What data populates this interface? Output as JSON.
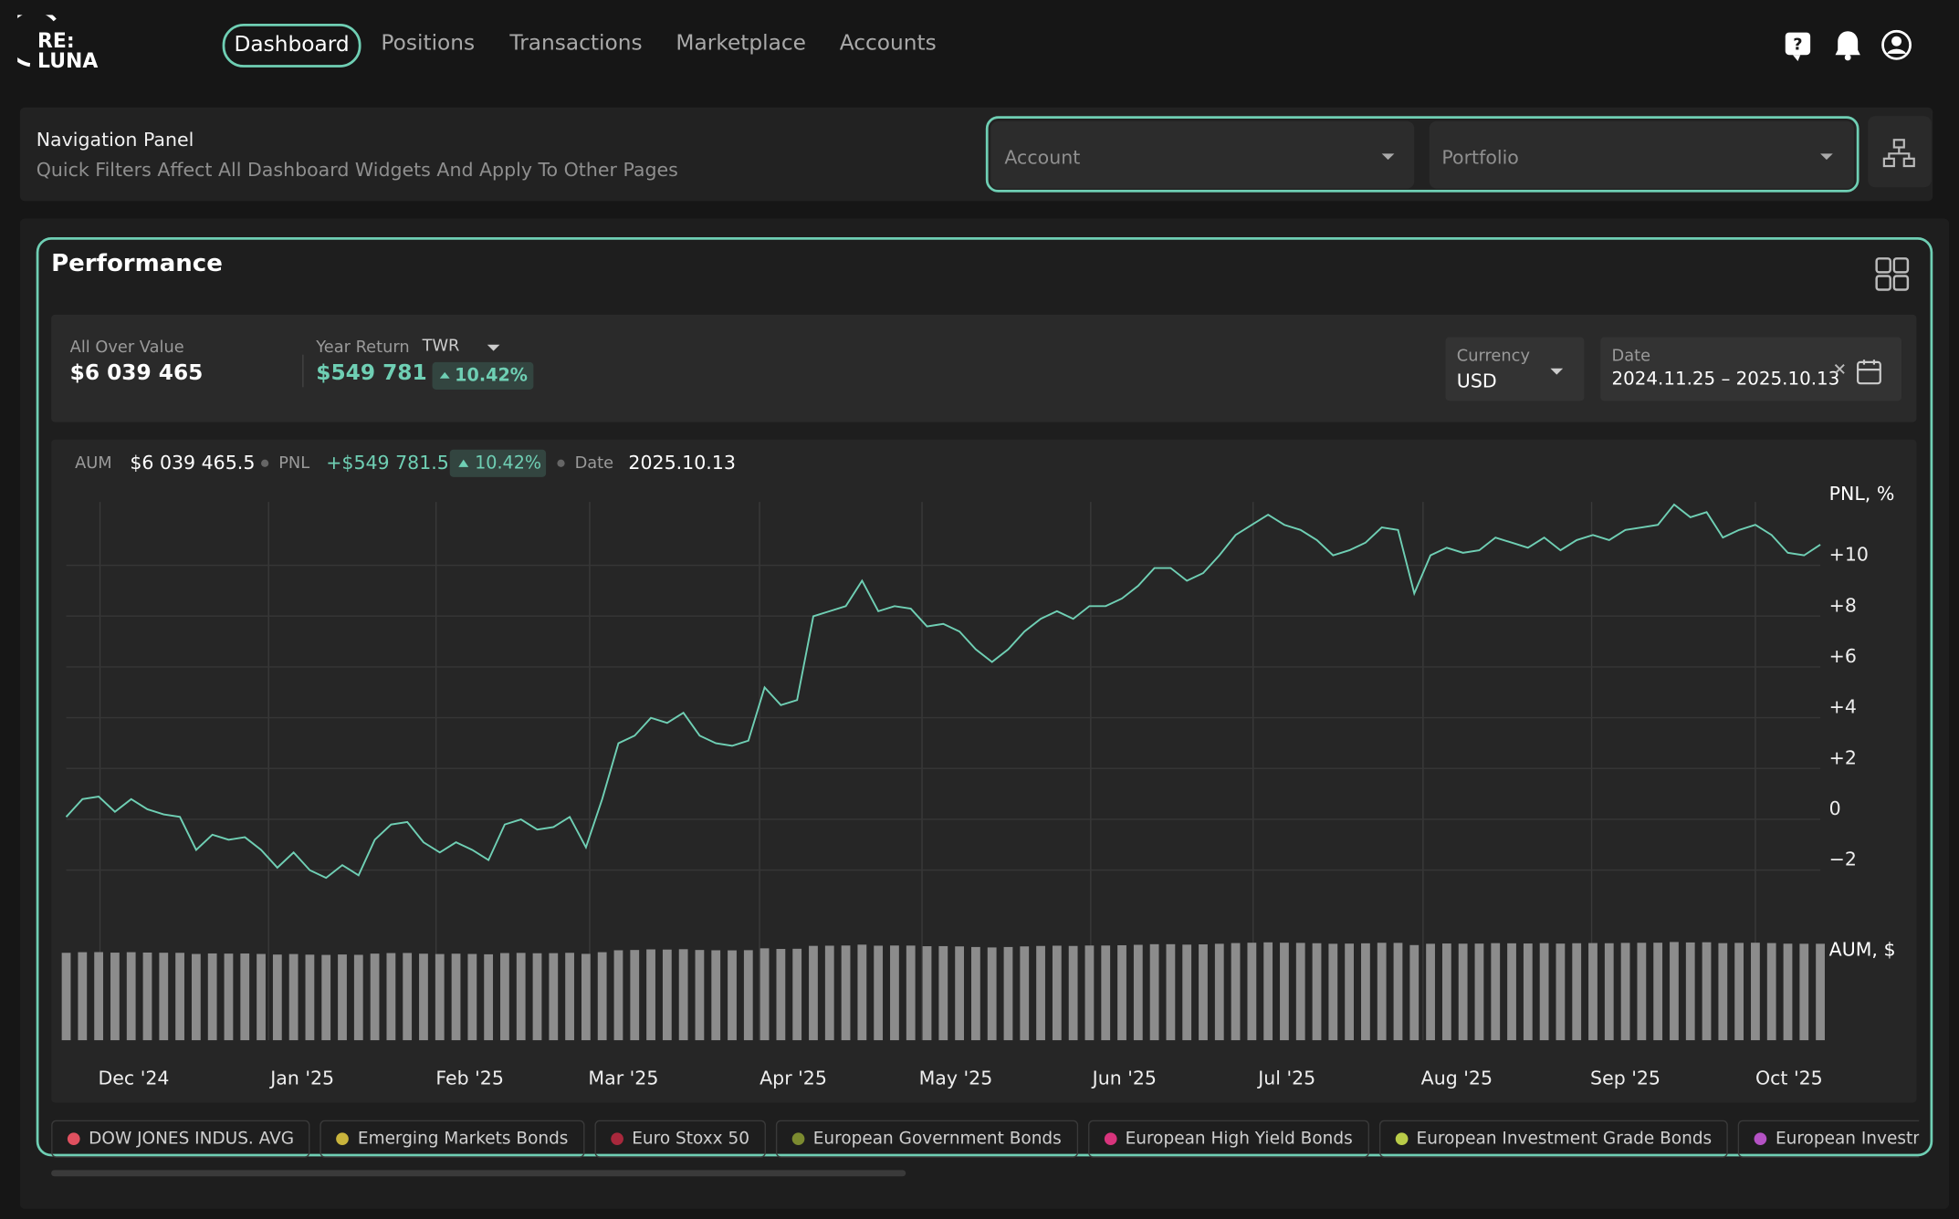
{
  "brand": {
    "line1": "RE:",
    "line2": "LUNA"
  },
  "nav": [
    "Dashboard",
    "Positions",
    "Transactions",
    "Marketplace",
    "Accounts"
  ],
  "nav_panel": {
    "title": "Navigation Panel",
    "subtitle": "Quick Filters Affect All Dashboard Widgets And Apply To Other Pages",
    "account": "Account",
    "portfolio": "Portfolio"
  },
  "performance": {
    "title": "Performance",
    "overall_label": "All Over Value",
    "overall_value": "$6 039 465",
    "year_return_label": "Year Return",
    "method": "TWR",
    "year_return_value": "$549 781",
    "year_return_change": "10.42%",
    "currency_label": "Currency",
    "currency": "USD",
    "date_label": "Date",
    "date_range": "2024.11.25 – 2025.10.13"
  },
  "chart_data": {
    "type": "line",
    "readout": {
      "aum": "$6 039 465.5",
      "pnl": "+$549 781.5",
      "change": "10.42%",
      "date_label": "Date",
      "date": "2025.10.13"
    },
    "ylabel": "PNL, %",
    "y2label": "AUM, $",
    "xlim": [
      0,
      108
    ],
    "xticks": [
      {
        "value": 2.08,
        "label": "Dec '24"
      },
      {
        "value": 12.46,
        "label": "Jan '25"
      },
      {
        "value": 22.77,
        "label": "Feb '25"
      },
      {
        "value": 32.23,
        "label": "Mar '25"
      },
      {
        "value": 42.69,
        "label": "Apr '25"
      },
      {
        "value": 52.69,
        "label": "May '25"
      },
      {
        "value": 63.08,
        "label": "Jun '25"
      },
      {
        "value": 73.08,
        "label": "Jul '25"
      },
      {
        "value": 83.54,
        "label": "Aug '25"
      },
      {
        "value": 93.92,
        "label": "Sep '25"
      },
      {
        "value": 104,
        "label": "Oct '25"
      }
    ],
    "ylim": [
      -2.8,
      12.1
    ],
    "yticks": [
      {
        "value": -2,
        "label": "−2"
      },
      0,
      {
        "value": 2,
        "label": "+2"
      },
      {
        "value": 4,
        "label": "+4"
      },
      {
        "value": 6,
        "label": "+6"
      },
      {
        "value": 8,
        "label": "+8"
      },
      {
        "value": 10,
        "label": "+10"
      }
    ],
    "y2lim": [
      0,
      10400000
    ],
    "grid": true,
    "series": [
      {
        "name": "PNL",
        "color": "#6fcfb4",
        "values": [
          -0.3,
          0.4,
          0.5,
          -0.1,
          0.4,
          0,
          -0.2,
          -0.3,
          -1.6,
          -1.0,
          -1.2,
          -1.1,
          -1.6,
          -2.3,
          -1.7,
          -2.4,
          -2.7,
          -2.2,
          -2.6,
          -1.2,
          -0.6,
          -0.5,
          -1.3,
          -1.7,
          -1.3,
          -1.6,
          -2.0,
          -0.6,
          -0.4,
          -0.8,
          -0.7,
          -0.3,
          -1.5,
          0.4,
          2.6,
          2.9,
          3.6,
          3.4,
          3.8,
          2.9,
          2.6,
          2.5,
          2.7,
          4.8,
          4.1,
          4.3,
          7.6,
          7.8,
          8.0,
          9.0,
          7.8,
          8.0,
          7.9,
          7.2,
          7.3,
          7.0,
          6.3,
          5.8,
          6.3,
          7.0,
          7.5,
          7.8,
          7.5,
          8.0,
          8.0,
          8.3,
          8.8,
          9.5,
          9.5,
          9.0,
          9.3,
          10.0,
          10.8,
          11.2,
          11.6,
          11.2,
          11.0,
          10.6,
          10.0,
          10.2,
          10.5,
          11.1,
          11.0,
          8.5,
          10.0,
          10.3,
          10.1,
          10.2,
          10.7,
          10.5,
          10.3,
          10.7,
          10.2,
          10.6,
          10.8,
          10.6,
          11.0,
          11.1,
          11.2,
          12.0,
          11.5,
          11.7,
          10.7,
          11.0,
          11.2,
          10.8,
          10.1,
          10.0,
          10.42
        ]
      },
      {
        "name": "AUM",
        "color": "#8c8c8c",
        "axis": "y2",
        "values": [
          5474000,
          5512000,
          5518000,
          5485000,
          5512000,
          5490000,
          5479000,
          5474000,
          5402000,
          5435000,
          5424000,
          5430000,
          5402000,
          5364000,
          5397000,
          5358000,
          5342000,
          5369000,
          5347000,
          5424000,
          5457000,
          5463000,
          5419000,
          5397000,
          5419000,
          5402000,
          5380000,
          5457000,
          5468000,
          5446000,
          5452000,
          5474000,
          5408000,
          5512000,
          5633000,
          5650000,
          5688000,
          5677000,
          5699000,
          5650000,
          5633000,
          5628000,
          5639000,
          5754000,
          5716000,
          5727000,
          5908000,
          5919000,
          5930000,
          5985000,
          5919000,
          5930000,
          5925000,
          5886000,
          5892000,
          5875000,
          5837000,
          5809000,
          5837000,
          5875000,
          5903000,
          5919000,
          5903000,
          5930000,
          5930000,
          5947000,
          5974000,
          6013000,
          6013000,
          5985000,
          6002000,
          6040000,
          6084000,
          6106000,
          6128000,
          6106000,
          6095000,
          6073000,
          6040000,
          6051000,
          6068000,
          6101000,
          6095000,
          5958000,
          6040000,
          6057000,
          6046000,
          6051000,
          6079000,
          6068000,
          6057000,
          6079000,
          6051000,
          6073000,
          6084000,
          6073000,
          6095000,
          6101000,
          6106000,
          6150000,
          6123000,
          6134000,
          6079000,
          6095000,
          6106000,
          6084000,
          6046000,
          6040000,
          6039465.5
        ]
      }
    ]
  },
  "legend_items": [
    {
      "name": "DOW JONES INDUS. AVG",
      "color": "#e0505f"
    },
    {
      "name": "Emerging Markets Bonds",
      "color": "#c9b43c"
    },
    {
      "name": "Euro Stoxx 50",
      "color": "#a8283c"
    },
    {
      "name": "European Government Bonds",
      "color": "#7c8b30"
    },
    {
      "name": "European High Yield Bonds",
      "color": "#d8347c"
    },
    {
      "name": "European Investment Grade Bonds",
      "color": "#b9cc48"
    },
    {
      "name": "European Investment",
      "color": "#b452c4"
    }
  ]
}
